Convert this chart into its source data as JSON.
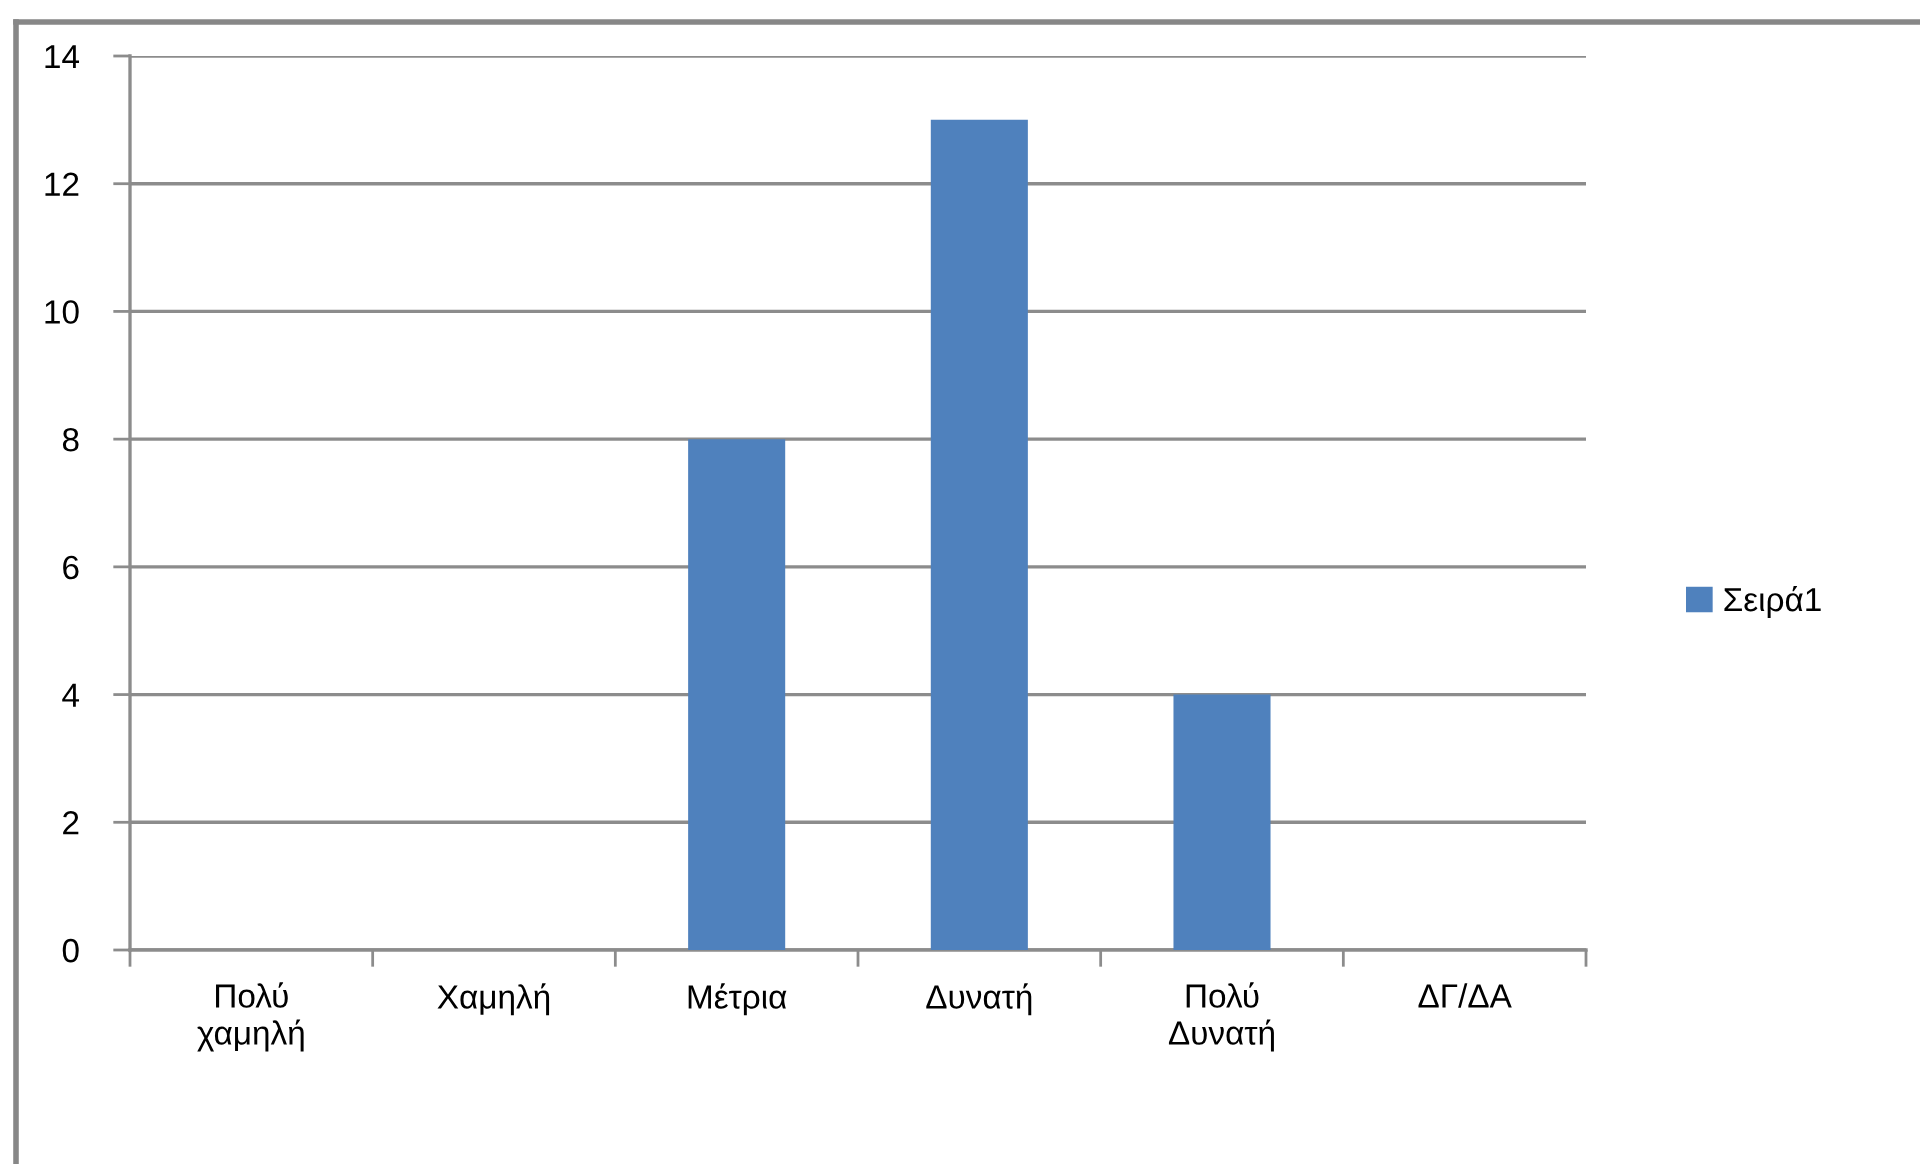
{
  "chart_data": {
    "type": "bar",
    "categories": [
      "Πολύ\nχαμηλή",
      "Χαμηλή",
      "Μέτρια",
      "Δυνατή",
      "Πολύ\nΔυνατή",
      "ΔΓ/ΔΑ"
    ],
    "series": [
      {
        "name": "Σειρά1",
        "color": "#4f81bd",
        "values": [
          0,
          0,
          8,
          13,
          4,
          0
        ]
      }
    ],
    "ylim": [
      0,
      14
    ],
    "yticks": [
      0,
      2,
      4,
      6,
      8,
      10,
      12,
      14
    ],
    "grid": "y",
    "legend": "right"
  }
}
